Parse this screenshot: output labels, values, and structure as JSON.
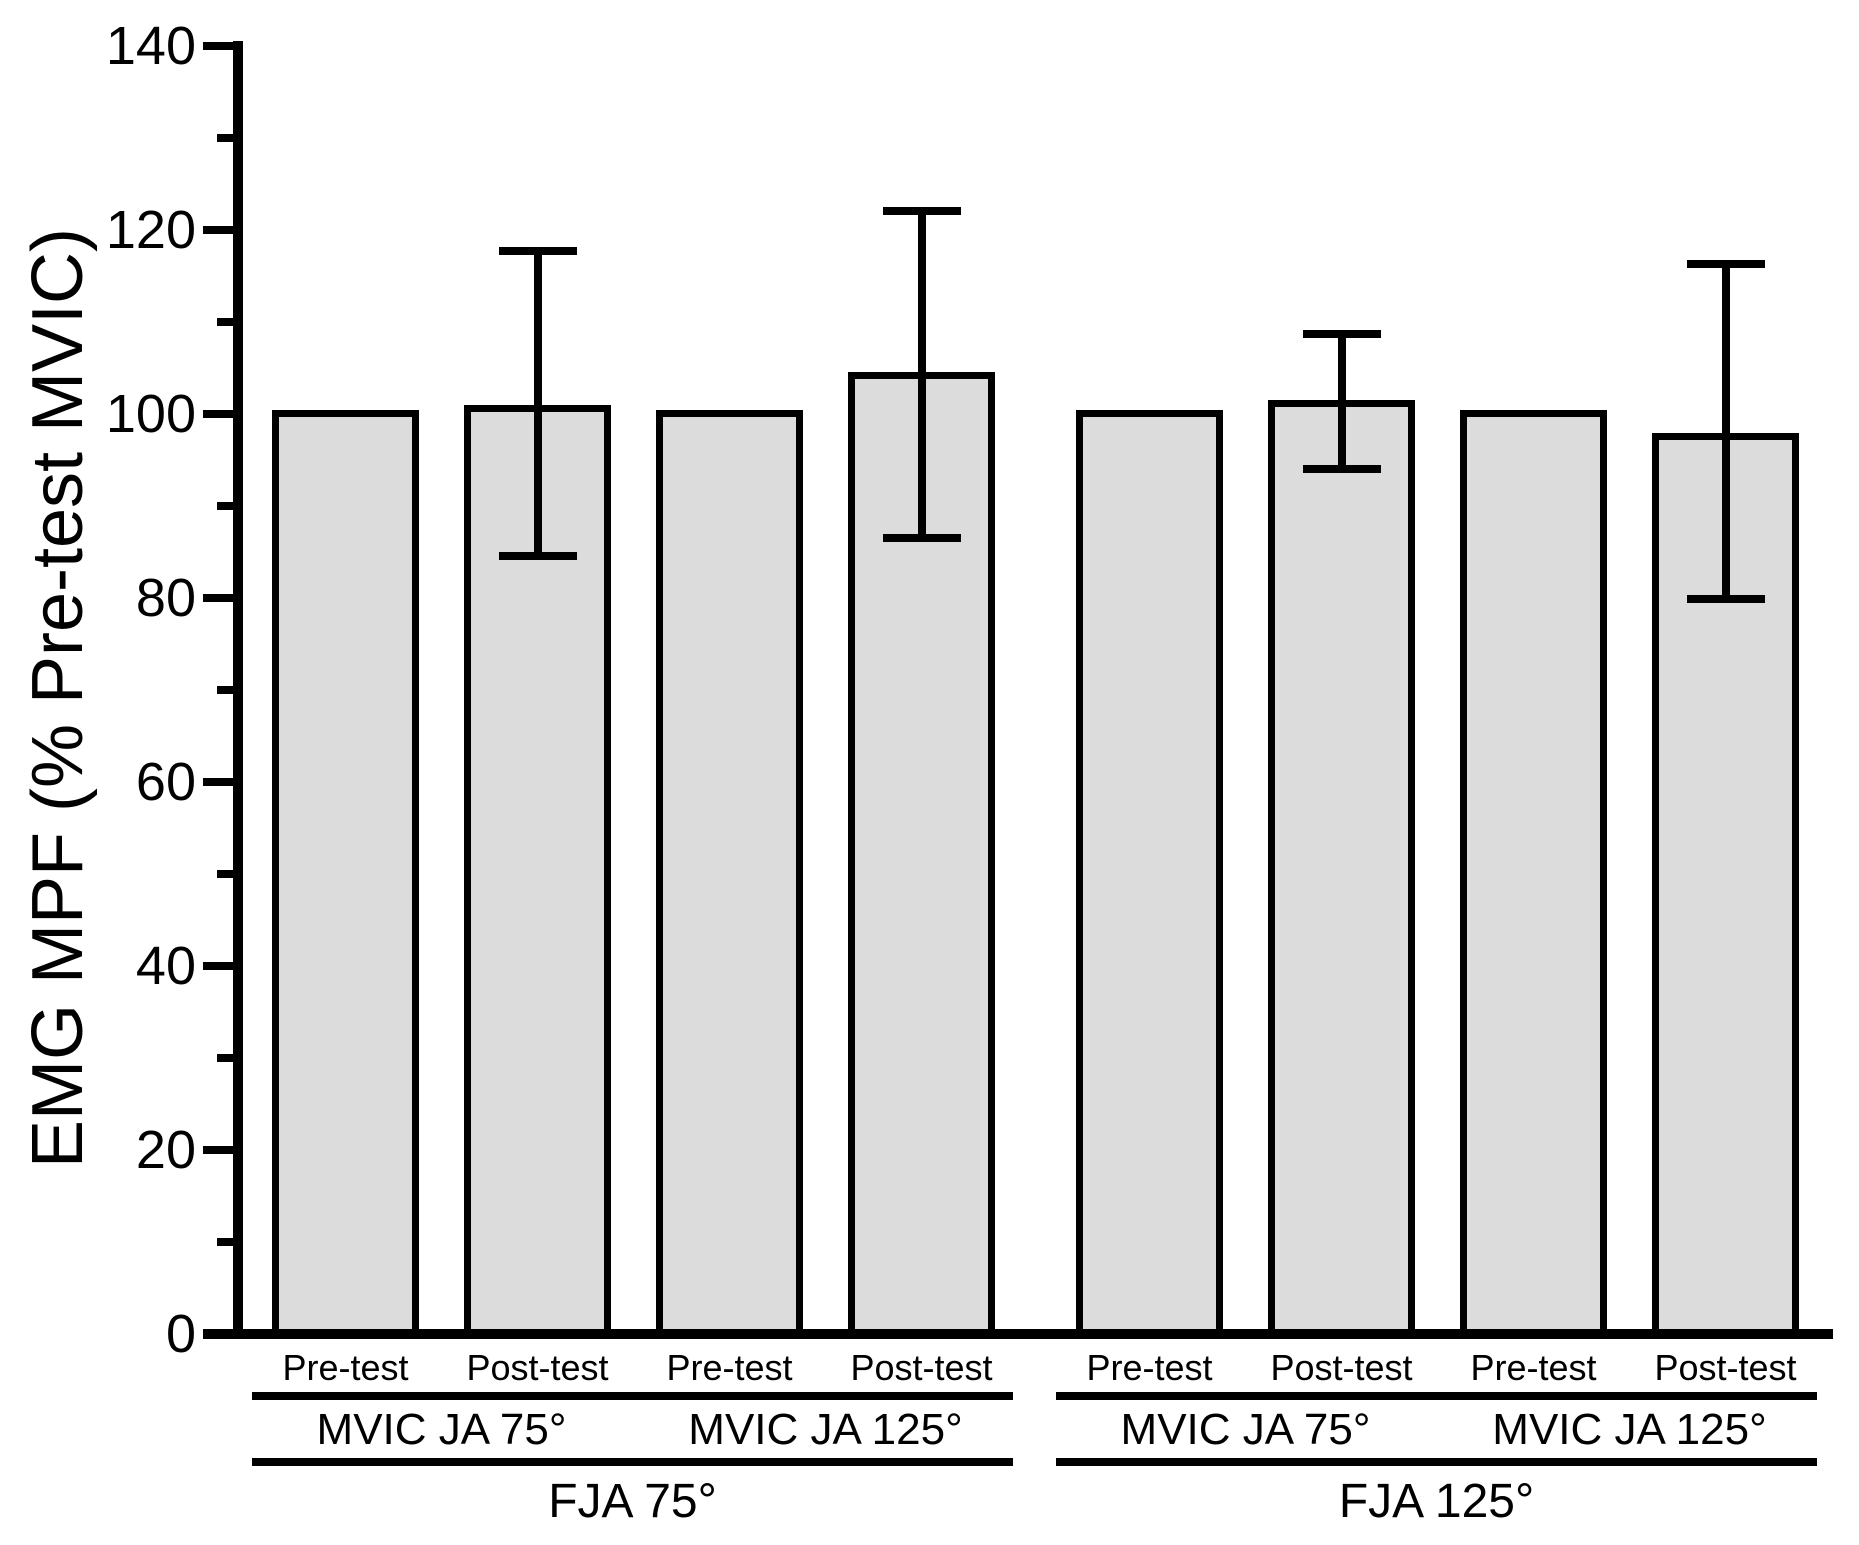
{
  "figure": {
    "background_color": "#ffffff",
    "axis_color": "#000000",
    "bar_fill_color": "#dcdcdc",
    "bar_edge_color": "#000000",
    "error_bar_color": "#000000"
  },
  "chart_data": {
    "type": "bar",
    "title": "",
    "xlabel": "",
    "ylabel": "EMG MPF (% Pre-test MVIC)",
    "ylim": [
      0,
      140
    ],
    "y_major_tick_step": 20,
    "y_minor_tick_step": 10,
    "y_tick_labels": [
      "0",
      "20",
      "40",
      "60",
      "80",
      "100",
      "120",
      "140"
    ],
    "grid": false,
    "legend": "none",
    "error_bars": "mean ± SD, capped I-beam, shown on Post-test bars only",
    "groups": [
      {
        "label": "FJA 75°",
        "subgroups": [
          {
            "label": "MVIC JA 75°",
            "bars": [
              {
                "label": "Pre-test",
                "value": 100.0
              },
              {
                "label": "Post-test",
                "value": 100.5,
                "err_low": 84.6,
                "err_high": 117.7
              }
            ]
          },
          {
            "label": "MVIC JA 125°",
            "bars": [
              {
                "label": "Pre-test",
                "value": 100.0
              },
              {
                "label": "Post-test",
                "value": 104.1,
                "err_low": 86.5,
                "err_high": 122.1
              }
            ]
          }
        ]
      },
      {
        "label": "FJA 125°",
        "subgroups": [
          {
            "label": "MVIC JA 75°",
            "bars": [
              {
                "label": "Pre-test",
                "value": 100.0
              },
              {
                "label": "Post-test",
                "value": 101.1,
                "err_low": 94.0,
                "err_high": 108.7
              }
            ]
          },
          {
            "label": "MVIC JA 125°",
            "bars": [
              {
                "label": "Pre-test",
                "value": 100.0
              },
              {
                "label": "Post-test",
                "value": 97.5,
                "err_low": 79.9,
                "err_high": 116.3
              }
            ]
          }
        ]
      }
    ]
  }
}
